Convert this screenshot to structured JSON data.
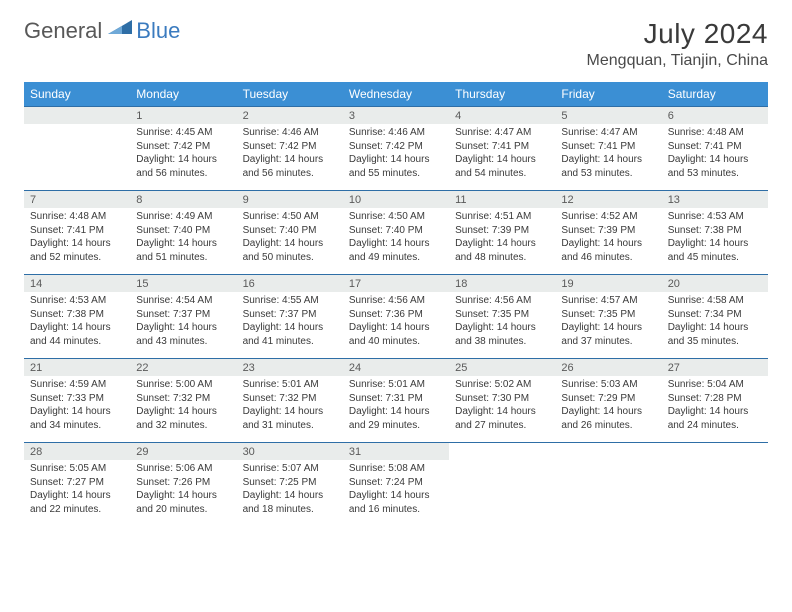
{
  "brand": {
    "part1": "General",
    "part2": "Blue",
    "logo_color": "#2e6ea6"
  },
  "title": {
    "month": "July 2024",
    "location": "Mengquan, Tianjin, China"
  },
  "colors": {
    "header_bg": "#3b8fd4",
    "header_text": "#ffffff",
    "daynum_bg": "#e9eceb",
    "row_border": "#2e6ea6",
    "text": "#3a3a3a"
  },
  "layout": {
    "first_day_offset": 1,
    "days_in_month": 31,
    "rows": 5,
    "cols": 7
  },
  "weekdays": [
    "Sunday",
    "Monday",
    "Tuesday",
    "Wednesday",
    "Thursday",
    "Friday",
    "Saturday"
  ],
  "days": [
    {
      "n": 1,
      "sr": "4:45 AM",
      "ss": "7:42 PM",
      "dl": "14 hours and 56 minutes."
    },
    {
      "n": 2,
      "sr": "4:46 AM",
      "ss": "7:42 PM",
      "dl": "14 hours and 56 minutes."
    },
    {
      "n": 3,
      "sr": "4:46 AM",
      "ss": "7:42 PM",
      "dl": "14 hours and 55 minutes."
    },
    {
      "n": 4,
      "sr": "4:47 AM",
      "ss": "7:41 PM",
      "dl": "14 hours and 54 minutes."
    },
    {
      "n": 5,
      "sr": "4:47 AM",
      "ss": "7:41 PM",
      "dl": "14 hours and 53 minutes."
    },
    {
      "n": 6,
      "sr": "4:48 AM",
      "ss": "7:41 PM",
      "dl": "14 hours and 53 minutes."
    },
    {
      "n": 7,
      "sr": "4:48 AM",
      "ss": "7:41 PM",
      "dl": "14 hours and 52 minutes."
    },
    {
      "n": 8,
      "sr": "4:49 AM",
      "ss": "7:40 PM",
      "dl": "14 hours and 51 minutes."
    },
    {
      "n": 9,
      "sr": "4:50 AM",
      "ss": "7:40 PM",
      "dl": "14 hours and 50 minutes."
    },
    {
      "n": 10,
      "sr": "4:50 AM",
      "ss": "7:40 PM",
      "dl": "14 hours and 49 minutes."
    },
    {
      "n": 11,
      "sr": "4:51 AM",
      "ss": "7:39 PM",
      "dl": "14 hours and 48 minutes."
    },
    {
      "n": 12,
      "sr": "4:52 AM",
      "ss": "7:39 PM",
      "dl": "14 hours and 46 minutes."
    },
    {
      "n": 13,
      "sr": "4:53 AM",
      "ss": "7:38 PM",
      "dl": "14 hours and 45 minutes."
    },
    {
      "n": 14,
      "sr": "4:53 AM",
      "ss": "7:38 PM",
      "dl": "14 hours and 44 minutes."
    },
    {
      "n": 15,
      "sr": "4:54 AM",
      "ss": "7:37 PM",
      "dl": "14 hours and 43 minutes."
    },
    {
      "n": 16,
      "sr": "4:55 AM",
      "ss": "7:37 PM",
      "dl": "14 hours and 41 minutes."
    },
    {
      "n": 17,
      "sr": "4:56 AM",
      "ss": "7:36 PM",
      "dl": "14 hours and 40 minutes."
    },
    {
      "n": 18,
      "sr": "4:56 AM",
      "ss": "7:35 PM",
      "dl": "14 hours and 38 minutes."
    },
    {
      "n": 19,
      "sr": "4:57 AM",
      "ss": "7:35 PM",
      "dl": "14 hours and 37 minutes."
    },
    {
      "n": 20,
      "sr": "4:58 AM",
      "ss": "7:34 PM",
      "dl": "14 hours and 35 minutes."
    },
    {
      "n": 21,
      "sr": "4:59 AM",
      "ss": "7:33 PM",
      "dl": "14 hours and 34 minutes."
    },
    {
      "n": 22,
      "sr": "5:00 AM",
      "ss": "7:32 PM",
      "dl": "14 hours and 32 minutes."
    },
    {
      "n": 23,
      "sr": "5:01 AM",
      "ss": "7:32 PM",
      "dl": "14 hours and 31 minutes."
    },
    {
      "n": 24,
      "sr": "5:01 AM",
      "ss": "7:31 PM",
      "dl": "14 hours and 29 minutes."
    },
    {
      "n": 25,
      "sr": "5:02 AM",
      "ss": "7:30 PM",
      "dl": "14 hours and 27 minutes."
    },
    {
      "n": 26,
      "sr": "5:03 AM",
      "ss": "7:29 PM",
      "dl": "14 hours and 26 minutes."
    },
    {
      "n": 27,
      "sr": "5:04 AM",
      "ss": "7:28 PM",
      "dl": "14 hours and 24 minutes."
    },
    {
      "n": 28,
      "sr": "5:05 AM",
      "ss": "7:27 PM",
      "dl": "14 hours and 22 minutes."
    },
    {
      "n": 29,
      "sr": "5:06 AM",
      "ss": "7:26 PM",
      "dl": "14 hours and 20 minutes."
    },
    {
      "n": 30,
      "sr": "5:07 AM",
      "ss": "7:25 PM",
      "dl": "14 hours and 18 minutes."
    },
    {
      "n": 31,
      "sr": "5:08 AM",
      "ss": "7:24 PM",
      "dl": "14 hours and 16 minutes."
    }
  ],
  "labels": {
    "sunrise": "Sunrise:",
    "sunset": "Sunset:",
    "daylight": "Daylight:"
  }
}
